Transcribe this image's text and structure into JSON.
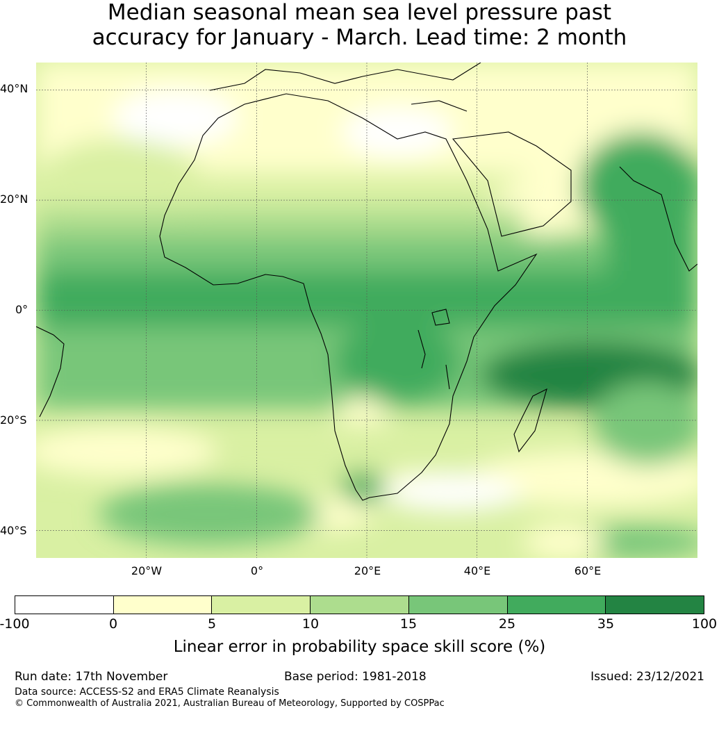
{
  "title": {
    "line1": "Median seasonal mean sea level pressure past",
    "line2": "accuracy for January - March. Lead time: 2 month"
  },
  "map": {
    "lat_labels": [
      "40°N",
      "20°N",
      "0°",
      "20°S",
      "40°S"
    ],
    "lon_labels": [
      "20°W",
      "0°",
      "20°E",
      "40°E",
      "60°E"
    ],
    "extent": {
      "lon_min": -40,
      "lon_max": 80,
      "lat_min": -45,
      "lat_max": 45
    },
    "grid_lons": [
      -20,
      0,
      20,
      40,
      60
    ],
    "grid_lats": [
      40,
      20,
      0,
      -20,
      -40
    ]
  },
  "colorbar": {
    "ticks": [
      "-100",
      "0",
      "5",
      "10",
      "15",
      "25",
      "35",
      "100"
    ],
    "colors": [
      "#ffffff",
      "#ffffcc",
      "#d9f0a3",
      "#addd8e",
      "#78c679",
      "#41ab5d",
      "#238443"
    ],
    "label": "Linear error in probability space skill score (%)"
  },
  "footer": {
    "run_date": "Run date: 17th November",
    "base_period": "Base period: 1981-2018",
    "issued": "Issued: 23/12/2021",
    "source": "Data source: ACCESS-S2 and ERA5 Climate Reanalysis",
    "copyright": "© Commonwealth of Australia 2021, Australian Bureau of Meteorology, Supported by COSPPac"
  }
}
